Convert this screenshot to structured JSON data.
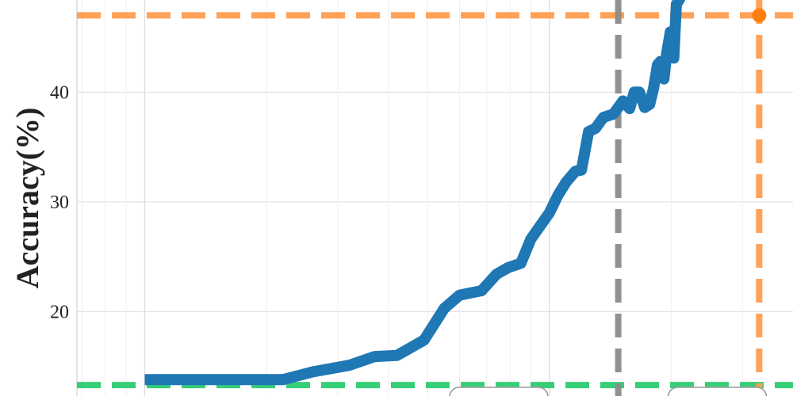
{
  "chart_data": {
    "type": "line",
    "title": "",
    "xlabel": "",
    "ylabel": "Accuracy(%)",
    "x_scale": "log",
    "ylim": [
      12.3,
      48.4
    ],
    "yticks": [
      20,
      30,
      40
    ],
    "ytick_labels": [
      "20",
      "30",
      "40"
    ],
    "grid": true,
    "series": [
      {
        "color": "#1f77b4",
        "x": [
          1.0,
          1.6,
          2.2,
          2.6,
          3.2,
          3.7,
          4.2,
          4.9,
          5.5,
          6.0,
          6.8,
          7.4,
          7.9,
          8.5,
          9.0,
          10.0,
          10.5,
          11.0,
          11.6,
          12.0,
          12.5,
          13.0,
          13.6,
          14.4,
          15.2,
          15.8,
          16.2,
          16.7,
          17.2,
          17.7,
          18.1,
          18.5,
          18.8,
          19.2,
          19.5,
          19.9,
          20.3,
          20.6,
          21.0,
          21.3
        ],
        "values": [
          13.8,
          13.8,
          13.8,
          14.5,
          15.1,
          15.9,
          16.0,
          17.4,
          20.3,
          21.5,
          21.9,
          23.4,
          24.0,
          24.4,
          26.6,
          29.0,
          30.6,
          31.8,
          32.8,
          32.9,
          36.4,
          36.7,
          37.7,
          38.0,
          39.2,
          38.5,
          40.0,
          40.0,
          38.6,
          38.9,
          40.4,
          42.5,
          42.8,
          41.2,
          43.6,
          45.5,
          43.1,
          48.0,
          48.5,
          49.0
        ]
      }
    ],
    "reference_lines": [
      {
        "orientation": "horizontal",
        "value": 47.0,
        "color": "#ff9d4f",
        "style": "dashed"
      },
      {
        "orientation": "horizontal",
        "value": 13.3,
        "color": "#2ecc71",
        "style": "dashed"
      },
      {
        "orientation": "vertical",
        "value": 14.8,
        "color": "#8c8c8c",
        "style": "dashed"
      },
      {
        "orientation": "vertical",
        "value": 33.0,
        "color": "#ff9d4f",
        "style": "dashed"
      }
    ],
    "markers": [
      {
        "x": 33.0,
        "y": 47.0,
        "color": "#ff7f0e"
      }
    ],
    "annotation_boxes": [
      {
        "x": 7.5,
        "text": ""
      },
      {
        "x": 26.0,
        "text": ""
      }
    ]
  }
}
